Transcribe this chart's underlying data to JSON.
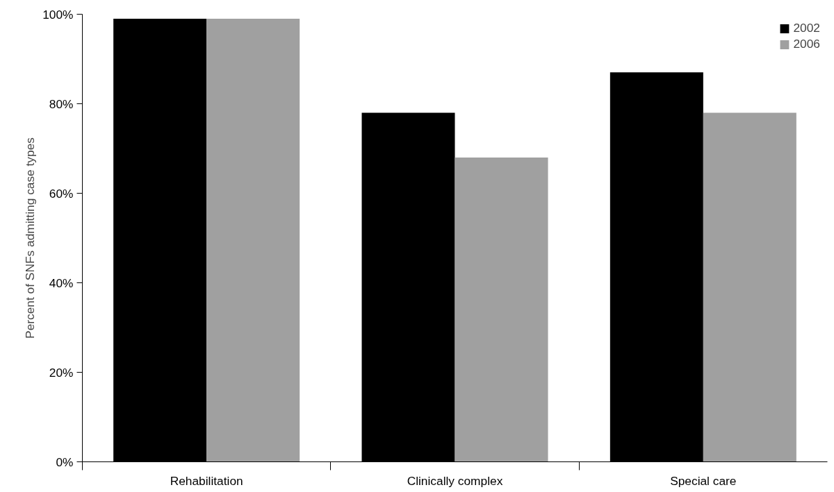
{
  "chart_data": {
    "type": "bar",
    "ylabel": "Percent of SNFs admitting case types",
    "categories": [
      "Rehabilitation",
      "Clinically complex",
      "Special care"
    ],
    "series": [
      {
        "name": "2002",
        "color": "#000000",
        "values": [
          99,
          78,
          87
        ]
      },
      {
        "name": "2006",
        "color": "#a0a0a0",
        "values": [
          99,
          68,
          78
        ]
      }
    ],
    "ylim": [
      0,
      100
    ],
    "yticks": [
      {
        "value": 0,
        "label": "0%"
      },
      {
        "value": 20,
        "label": "20%"
      },
      {
        "value": 40,
        "label": "40%"
      },
      {
        "value": 60,
        "label": "60%"
      },
      {
        "value": 80,
        "label": "80%"
      },
      {
        "value": 100,
        "label": "100%"
      }
    ],
    "grid": false,
    "legend": "top right"
  }
}
